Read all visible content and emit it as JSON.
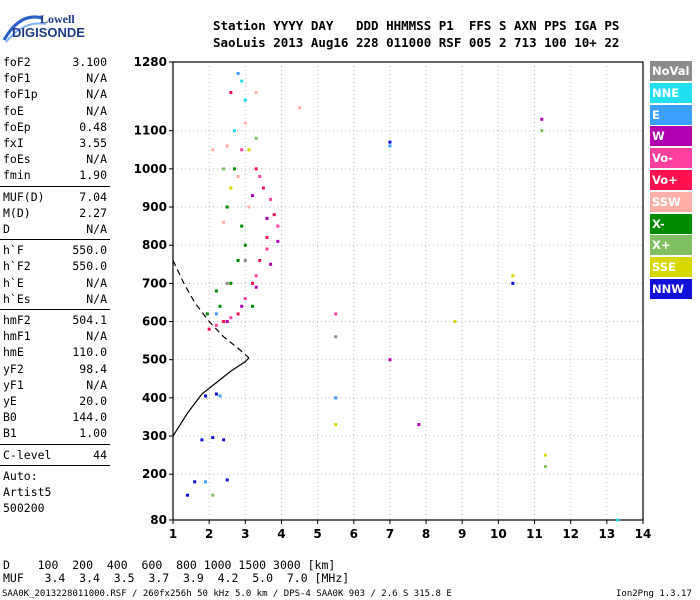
{
  "logo": {
    "line1": "Lowell",
    "line2": "DIGISONDE"
  },
  "header": {
    "row1": "Station YYYY DAY   DDD HHMMSS P1  FFS S AXN PPS IGA PS",
    "row2": "SaoLuis 2013 Aug16 228 011000 RSF 005 2 713 100 10+ 22"
  },
  "params_group1": [
    {
      "k": "foF2",
      "v": "3.100"
    },
    {
      "k": "foF1",
      "v": "N/A"
    },
    {
      "k": "foF1p",
      "v": "N/A"
    },
    {
      "k": "foE",
      "v": "N/A"
    },
    {
      "k": "foEp",
      "v": "0.48"
    },
    {
      "k": "fxI",
      "v": "3.55"
    },
    {
      "k": "foEs",
      "v": "N/A"
    },
    {
      "k": "fmin",
      "v": "1.90"
    }
  ],
  "params_group2": [
    {
      "k": "MUF(D)",
      "v": "7.04"
    },
    {
      "k": "M(D)",
      "v": "2.27"
    },
    {
      "k": "D",
      "v": "N/A"
    }
  ],
  "params_group3": [
    {
      "k": "h`F",
      "v": "550.0"
    },
    {
      "k": "h`F2",
      "v": "550.0"
    },
    {
      "k": "h`E",
      "v": "N/A"
    },
    {
      "k": "h`Es",
      "v": "N/A"
    }
  ],
  "params_group4": [
    {
      "k": "hmF2",
      "v": "504.1"
    },
    {
      "k": "hmF1",
      "v": "N/A"
    },
    {
      "k": "hmE",
      "v": "110.0"
    },
    {
      "k": "yF2",
      "v": "98.4"
    },
    {
      "k": "yF1",
      "v": "N/A"
    },
    {
      "k": "yE",
      "v": "20.0"
    },
    {
      "k": "B0",
      "v": "144.0"
    },
    {
      "k": "B1",
      "v": "1.00"
    }
  ],
  "clevel": {
    "k": "C-level",
    "v": "44"
  },
  "auto": [
    "Auto:",
    "Artist5",
    "500200"
  ],
  "d_muf": {
    "d_row": "D    100  200  400  600  800 1000 1500 3000 [km]",
    "muf_row": "MUF   3.4  3.4  3.5  3.7  3.9  4.2  5.0  7.0 [MHz]"
  },
  "footer": {
    "left": "SAA0K_2013228011000.RSF / 260fx256h 50 kHz 5.0 km / DPS-4 SAA0K 903 / 2.6 S 315.8 E",
    "right": "Ion2Png 1.3.17"
  },
  "legend": [
    {
      "label": "NoVal",
      "bg": "#8c8c8c",
      "fg": "#ffffff"
    },
    {
      "label": "NNE",
      "bg": "#22e0f0",
      "fg": "#ffffff"
    },
    {
      "label": "E",
      "bg": "#3aa0ff",
      "fg": "#ffffff"
    },
    {
      "label": "W",
      "bg": "#b000b0",
      "fg": "#ffffff"
    },
    {
      "label": "Vo-",
      "bg": "#ff40a0",
      "fg": "#ffffff"
    },
    {
      "label": "Vo+",
      "bg": "#ff1050",
      "fg": "#ffffff"
    },
    {
      "label": "SSW",
      "bg": "#ffb0a8",
      "fg": "#ffffff"
    },
    {
      "label": "X-",
      "bg": "#008c00",
      "fg": "#ffffff"
    },
    {
      "label": "X+",
      "bg": "#80c060",
      "fg": "#ffffff"
    },
    {
      "label": "SSE",
      "bg": "#d8d800",
      "fg": "#ffffff"
    },
    {
      "label": "NNW",
      "bg": "#1010d8",
      "fg": "#ffffff"
    }
  ],
  "chart_data": {
    "type": "scatter",
    "x_ticks": [
      1,
      2,
      3,
      4,
      5,
      6,
      7,
      8,
      9,
      10,
      11,
      12,
      13,
      14
    ],
    "y_ticks": [
      80,
      200,
      300,
      400,
      500,
      600,
      700,
      800,
      900,
      1000,
      1100,
      1280
    ],
    "xlim": [
      1,
      14
    ],
    "ylim": [
      80,
      1280
    ],
    "grid": true,
    "series": [
      {
        "name": "X-",
        "color": "#008c00",
        "points": [
          [
            1.95,
            620
          ],
          [
            2.3,
            640
          ],
          [
            2.6,
            700
          ],
          [
            2.8,
            760
          ],
          [
            3.0,
            800
          ],
          [
            2.9,
            850
          ],
          [
            2.5,
            900
          ],
          [
            2.7,
            1000
          ],
          [
            2.2,
            680
          ],
          [
            3.2,
            640
          ]
        ]
      },
      {
        "name": "Vo+",
        "color": "#ff1050",
        "points": [
          [
            2.0,
            580
          ],
          [
            2.4,
            600
          ],
          [
            2.8,
            620
          ],
          [
            3.2,
            700
          ],
          [
            3.4,
            760
          ],
          [
            3.6,
            820
          ],
          [
            3.8,
            880
          ],
          [
            3.5,
            950
          ],
          [
            3.3,
            1000
          ],
          [
            2.6,
            1200
          ]
        ]
      },
      {
        "name": "Vo-",
        "color": "#ff40a0",
        "points": [
          [
            2.2,
            590
          ],
          [
            2.6,
            610
          ],
          [
            3.0,
            660
          ],
          [
            3.3,
            720
          ],
          [
            3.6,
            790
          ],
          [
            3.9,
            850
          ],
          [
            3.7,
            920
          ],
          [
            3.4,
            980
          ],
          [
            2.9,
            1050
          ],
          [
            5.5,
            620
          ]
        ]
      },
      {
        "name": "W",
        "color": "#b000b0",
        "points": [
          [
            2.5,
            600
          ],
          [
            2.9,
            640
          ],
          [
            3.3,
            690
          ],
          [
            3.7,
            750
          ],
          [
            3.9,
            810
          ],
          [
            3.6,
            870
          ],
          [
            3.2,
            930
          ],
          [
            7.8,
            330
          ],
          [
            11.2,
            1130
          ],
          [
            7.0,
            500
          ]
        ]
      },
      {
        "name": "NNW",
        "color": "#1010d8",
        "points": [
          [
            1.8,
            290
          ],
          [
            2.1,
            296
          ],
          [
            2.4,
            290
          ],
          [
            1.9,
            405
          ],
          [
            2.2,
            410
          ],
          [
            1.6,
            180
          ],
          [
            2.5,
            185
          ],
          [
            1.4,
            145
          ],
          [
            7.0,
            1070
          ],
          [
            10.4,
            700
          ]
        ]
      },
      {
        "name": "SSW",
        "color": "#ffb0a8",
        "points": [
          [
            2.1,
            1050
          ],
          [
            2.5,
            1060
          ],
          [
            3.0,
            1120
          ],
          [
            3.3,
            1200
          ],
          [
            4.5,
            1160
          ],
          [
            2.8,
            980
          ],
          [
            3.1,
            900
          ],
          [
            2.4,
            860
          ]
        ]
      },
      {
        "name": "E",
        "color": "#3aa0ff",
        "points": [
          [
            2.2,
            620
          ],
          [
            2.8,
            1250
          ],
          [
            1.9,
            180
          ],
          [
            7.0,
            1060
          ],
          [
            5.5,
            400
          ],
          [
            2.3,
            405
          ]
        ]
      },
      {
        "name": "NNE",
        "color": "#22e0f0",
        "points": [
          [
            2.9,
            1230
          ],
          [
            3.0,
            1180
          ],
          [
            2.7,
            1100
          ],
          [
            13.3,
            80
          ]
        ]
      },
      {
        "name": "X+",
        "color": "#80c060",
        "points": [
          [
            2.1,
            145
          ],
          [
            2.4,
            1000
          ],
          [
            3.3,
            1080
          ],
          [
            11.3,
            220
          ],
          [
            11.2,
            1100
          ]
        ]
      },
      {
        "name": "SSE",
        "color": "#d8d800",
        "points": [
          [
            2.6,
            950
          ],
          [
            3.1,
            1050
          ],
          [
            8.8,
            600
          ],
          [
            10.4,
            720
          ],
          [
            5.5,
            330
          ],
          [
            11.3,
            250
          ]
        ]
      },
      {
        "name": "NoVal",
        "color": "#8c8c8c",
        "points": [
          [
            3.0,
            760
          ],
          [
            2.5,
            700
          ],
          [
            5.5,
            560
          ]
        ]
      }
    ],
    "profile_curve": [
      [
        1,
        300
      ],
      [
        1.4,
        360
      ],
      [
        1.8,
        410
      ],
      [
        2.2,
        440
      ],
      [
        2.6,
        470
      ],
      [
        3.0,
        495
      ],
      [
        3.1,
        505
      ]
    ],
    "dashed_curve": [
      [
        1,
        760
      ],
      [
        1.3,
        700
      ],
      [
        1.6,
        650
      ],
      [
        2.0,
        600
      ],
      [
        2.4,
        560
      ],
      [
        2.8,
        530
      ],
      [
        3.1,
        505
      ]
    ]
  }
}
